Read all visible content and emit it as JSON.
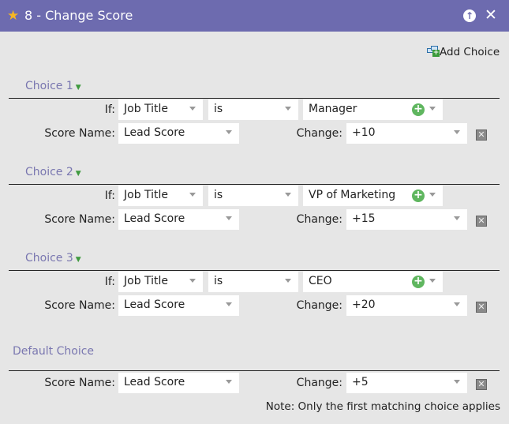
{
  "window": {
    "title": "8 - Change Score",
    "star_icon": "star-icon",
    "up_icon": "arrow-up-icon",
    "close_icon": "close-icon"
  },
  "add_choice": "Add Choice",
  "labels": {
    "if": "If:",
    "score_name": "Score Name:",
    "change": "Change:"
  },
  "choices": [
    {
      "label": "Choice 1",
      "field": "Job Title",
      "operator": "is",
      "value": "Manager",
      "score_name": "Lead Score",
      "change": "+10"
    },
    {
      "label": "Choice 2",
      "field": "Job Title",
      "operator": "is",
      "value": "VP of Marketing",
      "score_name": "Lead Score",
      "change": "+15"
    },
    {
      "label": "Choice 3",
      "field": "Job Title",
      "operator": "is",
      "value": "CEO",
      "score_name": "Lead Score",
      "change": "+20"
    }
  ],
  "default_choice": {
    "label": "Default Choice",
    "score_name": "Lead Score",
    "change": "+5"
  },
  "note": "Note: Only the first matching choice applies"
}
